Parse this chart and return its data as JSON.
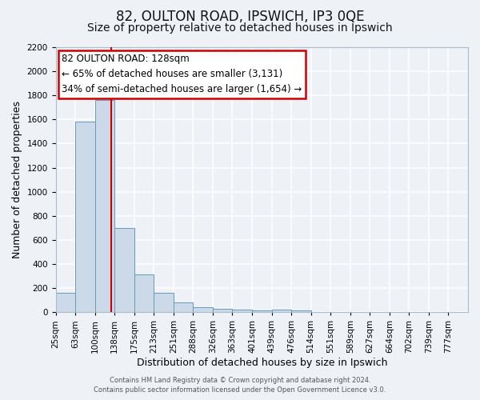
{
  "title": "82, OULTON ROAD, IPSWICH, IP3 0QE",
  "subtitle": "Size of property relative to detached houses in Ipswich",
  "xlabel": "Distribution of detached houses by size in Ipswich",
  "ylabel": "Number of detached properties",
  "all_labels": [
    "25sqm",
    "63sqm",
    "100sqm",
    "138sqm",
    "175sqm",
    "213sqm",
    "251sqm",
    "288sqm",
    "326sqm",
    "363sqm",
    "401sqm",
    "439sqm",
    "476sqm",
    "514sqm",
    "551sqm",
    "589sqm",
    "627sqm",
    "664sqm",
    "702sqm",
    "739sqm",
    "777sqm"
  ],
  "bar_heights": [
    160,
    1580,
    1760,
    700,
    315,
    160,
    80,
    45,
    30,
    20,
    15,
    20,
    15,
    0,
    0,
    0,
    0,
    0,
    0,
    0
  ],
  "bar_color": "#ccd9e8",
  "bar_edge_color": "#6699bb",
  "vline_x": 2.82,
  "vline_color": "#cc0000",
  "ylim": [
    0,
    2200
  ],
  "yticks": [
    0,
    200,
    400,
    600,
    800,
    1000,
    1200,
    1400,
    1600,
    1800,
    2000,
    2200
  ],
  "annotation_title": "82 OULTON ROAD: 128sqm",
  "annotation_line1": "← 65% of detached houses are smaller (3,131)",
  "annotation_line2": "34% of semi-detached houses are larger (1,654) →",
  "annotation_box_color": "#ffffff",
  "annotation_box_edge": "#cc0000",
  "footer1": "Contains HM Land Registry data © Crown copyright and database right 2024.",
  "footer2": "Contains public sector information licensed under the Open Government Licence v3.0.",
  "bg_color": "#eef2f7",
  "grid_color": "#ffffff",
  "title_fontsize": 12,
  "subtitle_fontsize": 10,
  "axis_label_fontsize": 9,
  "tick_fontsize": 7.5,
  "annotation_fontsize": 8.5
}
